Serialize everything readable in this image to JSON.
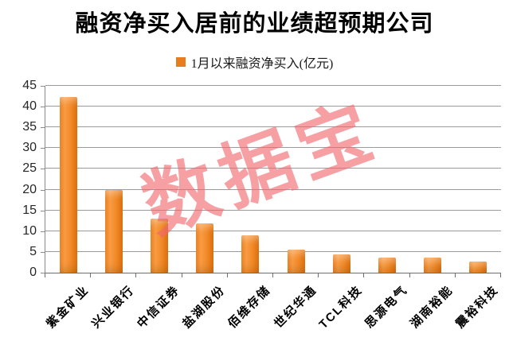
{
  "header": {
    "title": "融资净买入居前的业绩超预期公司"
  },
  "legend": {
    "label": "1月以来融资净买入(亿元)",
    "swatch_color": "#E87D1E"
  },
  "watermark": {
    "text": "数据宝",
    "color": "#F1676C"
  },
  "chart_data": {
    "type": "bar",
    "title": "融资净买入居前的业绩超预期公司",
    "legend_entries": [
      "1月以来融资净买入(亿元)"
    ],
    "legend_position": "top",
    "categories": [
      "紫金矿业",
      "兴业银行",
      "中信证券",
      "盐湖股份",
      "佰维存储",
      "世纪华通",
      "TCL科技",
      "思源电气",
      "湖南裕能",
      "震裕科技"
    ],
    "values": [
      42.4,
      20.0,
      13.0,
      11.8,
      9.0,
      5.5,
      4.4,
      3.7,
      3.6,
      2.7
    ],
    "unit": "亿元",
    "xlabel": "",
    "ylabel": "",
    "ylim": [
      0,
      45
    ],
    "yticks": [
      0,
      5,
      10,
      15,
      20,
      25,
      30,
      35,
      40,
      45
    ],
    "grid": true,
    "bar_color": "#F0861F"
  }
}
